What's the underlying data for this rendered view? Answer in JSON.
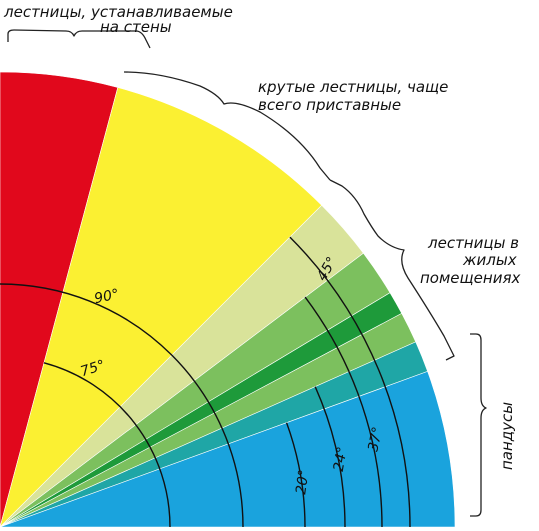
{
  "labels": {
    "wall_ladders_line1": "лестницы, устанавливаемые",
    "wall_ladders_line2": "на стены",
    "steep_stairs_line1": "крутые лестницы, чаще",
    "steep_stairs_line2": "всего приставные",
    "residential_line1": "лестницы в",
    "residential_line2": "жилых",
    "residential_line3": "помещениях",
    "ramps": "пандусы"
  },
  "angles": {
    "a90": "90°",
    "a75": "75°",
    "a45": "45°",
    "a37": "37°",
    "a24": "24°",
    "a20": "20°"
  },
  "colors": {
    "red": "#e1081c",
    "yellow": "#fbf032",
    "pale_green": "#d9e39a",
    "mid_green": "#7cc05e",
    "dark_green": "#1e9a3a",
    "teal": "#1fa6a6",
    "blue": "#1aa3dd"
  }
}
